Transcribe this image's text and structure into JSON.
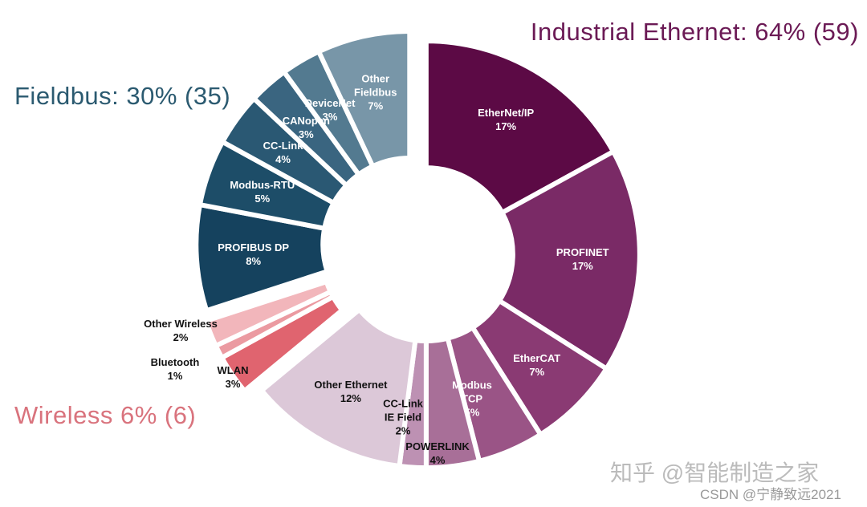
{
  "chart_data": {
    "type": "pie",
    "donut": true,
    "groups": [
      {
        "label": "Industrial Ethernet: 64% (59)",
        "color": "#6b1a55",
        "categories": [
          "EtherNet/IP",
          "PROFINET",
          "EtherCAT",
          "Modbus TCP",
          "POWERLINK",
          "CC-Link IE Field",
          "Other Ethernet"
        ],
        "values": [
          17,
          17,
          7,
          5,
          4,
          2,
          12
        ],
        "value_labels": [
          "17%",
          "17%",
          "7%",
          "5%",
          "4%",
          "2%",
          "12%"
        ],
        "colors": [
          "#5c0a45",
          "#7a2a66",
          "#8a3a73",
          "#9a5486",
          "#a86f98",
          "#bd91b3",
          "#dcc8d8"
        ]
      },
      {
        "label": "Wireless 6% (6)",
        "color": "#d9737d",
        "categories": [
          "WLAN",
          "Bluetooth",
          "Other Wireless"
        ],
        "values": [
          3,
          1,
          2
        ],
        "value_labels": [
          "3%",
          "1%",
          "2%"
        ],
        "colors": [
          "#e0646f",
          "#eb9aa1",
          "#f2b6bb"
        ]
      },
      {
        "label": "Fieldbus: 30% (35)",
        "color": "#2b5a70",
        "categories": [
          "PROFIBUS DP",
          "Modbus-RTU",
          "CC-Link",
          "CANopen",
          "DeviceNet",
          "Other Fieldbus"
        ],
        "values": [
          8,
          5,
          4,
          3,
          3,
          7
        ],
        "value_labels": [
          "8%",
          "5%",
          "4%",
          "3%",
          "3%",
          "7%"
        ],
        "colors": [
          "#15425e",
          "#1d4d68",
          "#2a5873",
          "#3a6580",
          "#537a90",
          "#7896a8"
        ]
      }
    ],
    "watermarks": [
      "知乎 @智能制造之家",
      "CSDN @宁静致远2021"
    ]
  }
}
